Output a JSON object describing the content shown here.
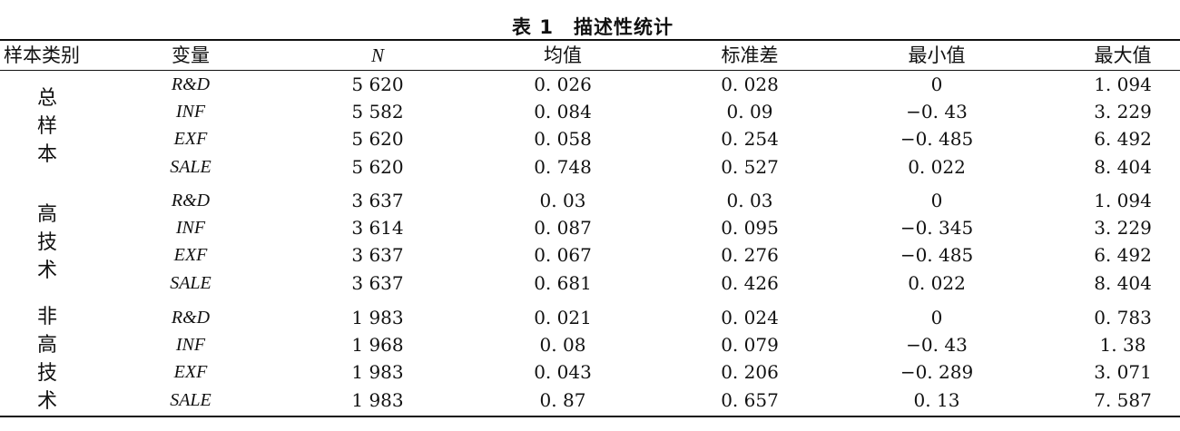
{
  "table": {
    "caption_label": "表 1",
    "caption_title": "描述性统计",
    "headers": [
      "样本类别",
      "变量",
      "N",
      "均值",
      "标准差",
      "最小值",
      "最大值"
    ],
    "groups": [
      {
        "name_chars": [
          "总",
          "样",
          "本"
        ],
        "rows": [
          {
            "var": "R&D",
            "n": "5 620",
            "mean": "0. 026",
            "sd": "0. 028",
            "min": "0",
            "max": "1. 094"
          },
          {
            "var": "INF",
            "n": "5 582",
            "mean": "0. 084",
            "sd": "0. 09",
            "min": "−0. 43",
            "max": "3. 229"
          },
          {
            "var": "EXF",
            "n": "5 620",
            "mean": "0. 058",
            "sd": "0. 254",
            "min": "−0. 485",
            "max": "6. 492"
          },
          {
            "var": "SALE",
            "n": "5 620",
            "mean": "0. 748",
            "sd": "0. 527",
            "min": "0. 022",
            "max": "8. 404"
          }
        ]
      },
      {
        "name_chars": [
          "高",
          "技",
          "术"
        ],
        "rows": [
          {
            "var": "R&D",
            "n": "3 637",
            "mean": "0. 03",
            "sd": "0. 03",
            "min": "0",
            "max": "1. 094"
          },
          {
            "var": "INF",
            "n": "3 614",
            "mean": "0. 087",
            "sd": "0. 095",
            "min": "−0. 345",
            "max": "3. 229"
          },
          {
            "var": "EXF",
            "n": "3 637",
            "mean": "0. 067",
            "sd": "0. 276",
            "min": "−0. 485",
            "max": "6. 492"
          },
          {
            "var": "SALE",
            "n": "3 637",
            "mean": "0. 681",
            "sd": "0. 426",
            "min": "0. 022",
            "max": "8. 404"
          }
        ]
      },
      {
        "name_chars": [
          "非",
          "高",
          "技",
          "术"
        ],
        "rows": [
          {
            "var": "R&D",
            "n": "1 983",
            "mean": "0. 021",
            "sd": "0. 024",
            "min": "0",
            "max": "0. 783"
          },
          {
            "var": "INF",
            "n": "1 968",
            "mean": "0. 08",
            "sd": "0. 079",
            "min": "−0. 43",
            "max": "1. 38"
          },
          {
            "var": "EXF",
            "n": "1 983",
            "mean": "0. 043",
            "sd": "0. 206",
            "min": "−0. 289",
            "max": "3. 071"
          },
          {
            "var": "SALE",
            "n": "1 983",
            "mean": "0. 87",
            "sd": "0. 657",
            "min": "0. 13",
            "max": "7. 587"
          }
        ]
      }
    ]
  }
}
